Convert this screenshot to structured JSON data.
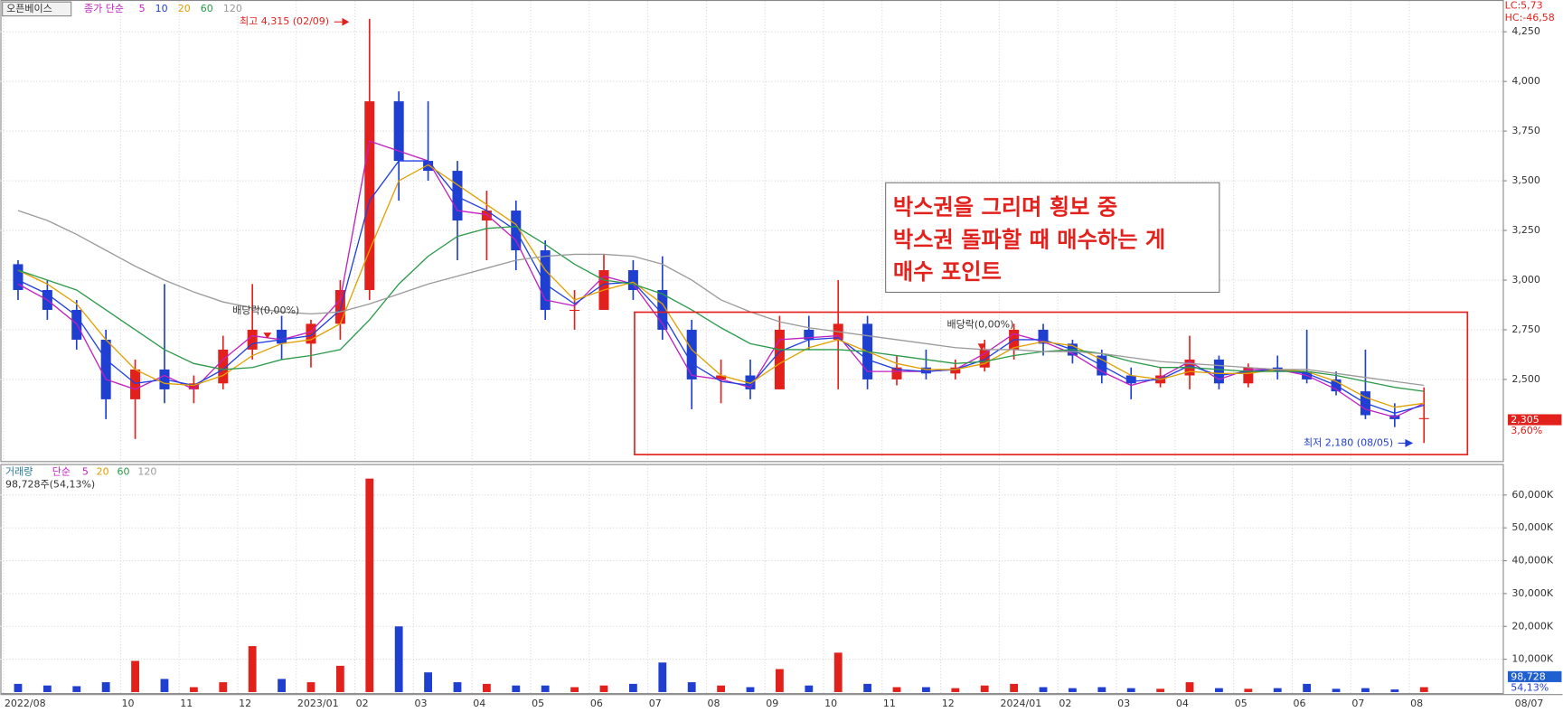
{
  "chart_data": {
    "type": "candlestick",
    "title": "오픈베이스",
    "ma_label": "종가 단순",
    "categories": [
      "2022/08",
      null,
      null,
      null,
      "10",
      null,
      "11",
      null,
      "12",
      null,
      "2023/01",
      null,
      "02",
      null,
      "03",
      null,
      "04",
      null,
      "05",
      null,
      "06",
      null,
      "07",
      null,
      "08",
      null,
      "09",
      null,
      "10",
      null,
      "11",
      null,
      "12",
      null,
      "2024/01",
      null,
      "02",
      null,
      "03",
      null,
      "04",
      null,
      "05",
      null,
      "06",
      null,
      "07",
      null,
      "08"
    ],
    "open": [
      3080,
      2950,
      2850,
      2700,
      2400,
      2550,
      2450,
      2480,
      2650,
      2750,
      2680,
      2780,
      2950,
      3900,
      3600,
      3550,
      3300,
      3350,
      3150,
      2850,
      2850,
      3050,
      2950,
      2750,
      2500,
      2520,
      2450,
      2750,
      2700,
      2780,
      2500,
      2560,
      2530,
      2560,
      2650,
      2750,
      2680,
      2620,
      2520,
      2480,
      2520,
      2600,
      2480,
      2560,
      2540,
      2500,
      2440,
      2320,
      2300
    ],
    "high": [
      3100,
      3000,
      2900,
      2750,
      2600,
      2980,
      2520,
      2720,
      2980,
      2820,
      2800,
      3000,
      4315,
      3950,
      3900,
      3600,
      3450,
      3400,
      3200,
      2950,
      3130,
      3100,
      3120,
      2800,
      2600,
      2600,
      2820,
      2820,
      3000,
      2820,
      2620,
      2650,
      2600,
      2700,
      2780,
      2780,
      2700,
      2650,
      2560,
      2560,
      2720,
      2620,
      2580,
      2620,
      2750,
      2540,
      2650,
      2380,
      2460
    ],
    "low": [
      2900,
      2800,
      2650,
      2300,
      2200,
      2380,
      2380,
      2450,
      2600,
      2600,
      2560,
      2700,
      2900,
      3400,
      3500,
      3100,
      3100,
      3050,
      2800,
      2750,
      2850,
      2900,
      2700,
      2350,
      2380,
      2400,
      2450,
      2650,
      2450,
      2450,
      2470,
      2500,
      2500,
      2540,
      2600,
      2620,
      2580,
      2480,
      2400,
      2460,
      2450,
      2450,
      2460,
      2500,
      2480,
      2420,
      2300,
      2260,
      2180
    ],
    "close": [
      2950,
      2850,
      2700,
      2400,
      2550,
      2450,
      2480,
      2650,
      2750,
      2680,
      2780,
      2950,
      3900,
      3600,
      3550,
      3300,
      3350,
      3150,
      2850,
      2850,
      3050,
      2950,
      2750,
      2500,
      2520,
      2450,
      2750,
      2700,
      2780,
      2500,
      2560,
      2530,
      2560,
      2650,
      2750,
      2680,
      2620,
      2520,
      2480,
      2520,
      2600,
      2480,
      2560,
      2540,
      2500,
      2440,
      2320,
      2300,
      2305
    ],
    "up_color": "#e3211c",
    "down_color": "#1f3fd0",
    "ma_series": [
      {
        "name": "5",
        "color": "#c020c0",
        "values": [
          2980,
          2900,
          2780,
          2500,
          2450,
          2520,
          2450,
          2600,
          2720,
          2700,
          2740,
          2900,
          3700,
          3650,
          3600,
          3350,
          3330,
          3200,
          2900,
          2870,
          3020,
          2980,
          2780,
          2520,
          2500,
          2460,
          2700,
          2710,
          2720,
          2540,
          2540,
          2540,
          2550,
          2630,
          2730,
          2690,
          2630,
          2540,
          2470,
          2510,
          2590,
          2500,
          2550,
          2550,
          2520,
          2450,
          2350,
          2310,
          2380
        ]
      },
      {
        "name": "10",
        "color": "#2040e0",
        "values": [
          3000,
          2930,
          2820,
          2600,
          2480,
          2500,
          2470,
          2550,
          2680,
          2700,
          2720,
          2850,
          3400,
          3600,
          3600,
          3420,
          3350,
          3250,
          2980,
          2880,
          2980,
          2990,
          2830,
          2580,
          2490,
          2470,
          2640,
          2700,
          2710,
          2600,
          2550,
          2540,
          2550,
          2600,
          2700,
          2700,
          2650,
          2570,
          2490,
          2500,
          2570,
          2520,
          2540,
          2550,
          2530,
          2470,
          2380,
          2330,
          2370
        ]
      },
      {
        "name": "20",
        "color": "#e0a000",
        "values": [
          3050,
          2980,
          2880,
          2700,
          2550,
          2480,
          2470,
          2520,
          2620,
          2680,
          2700,
          2780,
          3150,
          3500,
          3580,
          3480,
          3380,
          3280,
          3050,
          2900,
          2950,
          2990,
          2880,
          2650,
          2520,
          2480,
          2580,
          2660,
          2700,
          2640,
          2580,
          2550,
          2550,
          2580,
          2660,
          2690,
          2670,
          2600,
          2520,
          2500,
          2540,
          2530,
          2530,
          2550,
          2540,
          2490,
          2410,
          2360,
          2380
        ]
      },
      {
        "name": "60",
        "color": "#2a9a4a",
        "values": [
          3050,
          3000,
          2950,
          2850,
          2750,
          2650,
          2580,
          2550,
          2560,
          2600,
          2620,
          2650,
          2800,
          2980,
          3120,
          3220,
          3260,
          3270,
          3180,
          3080,
          3000,
          2980,
          2930,
          2850,
          2760,
          2680,
          2650,
          2650,
          2650,
          2640,
          2620,
          2600,
          2580,
          2590,
          2620,
          2640,
          2650,
          2630,
          2590,
          2560,
          2560,
          2550,
          2540,
          2540,
          2540,
          2520,
          2490,
          2460,
          2440
        ]
      },
      {
        "name": "120",
        "color": "#9a9a9a",
        "values": [
          3350,
          3300,
          3230,
          3150,
          3070,
          3000,
          2940,
          2890,
          2860,
          2840,
          2830,
          2840,
          2880,
          2930,
          2980,
          3020,
          3060,
          3100,
          3120,
          3130,
          3130,
          3120,
          3080,
          3000,
          2900,
          2840,
          2790,
          2760,
          2740,
          2720,
          2700,
          2680,
          2660,
          2650,
          2650,
          2640,
          2640,
          2630,
          2610,
          2590,
          2580,
          2570,
          2560,
          2550,
          2550,
          2530,
          2510,
          2490,
          2470
        ]
      }
    ],
    "ylim": [
      2089,
      4400
    ],
    "yticks": [
      {
        "value": 2500,
        "label": "2,500"
      },
      {
        "value": 2750,
        "label": "2,750"
      },
      {
        "value": 3000,
        "label": "3,000"
      },
      {
        "value": 3250,
        "label": "3,250"
      },
      {
        "value": 3500,
        "label": "3,500"
      },
      {
        "value": 3750,
        "label": "3,750"
      },
      {
        "value": 4000,
        "label": "4,000"
      },
      {
        "value": 4250,
        "label": "4,250"
      }
    ],
    "grid": true,
    "high_label": "최고 4,315 (02/09)",
    "low_label": "최저 2,180 (08/05)",
    "dividend_labels": [
      "배당락(0,00%)",
      "배당락(0,00%)"
    ],
    "note_lines": [
      "박스권을 그리며 횡보 중",
      "박스권 돌파할 때 매수하는 게",
      "매수 포인트"
    ],
    "last_price_label": "2,305",
    "change_label": "3,60%",
    "lc_label": "LC:5,73",
    "hc_label": "HC:-46,58",
    "last_date": "08/07",
    "volume": {
      "label": "거래량",
      "ma_label": "단순",
      "ma_periods": [
        5,
        20,
        60,
        120
      ],
      "info": "98,728주(54,13%)",
      "values": [
        2500,
        2000,
        1800,
        3000,
        9500,
        4000,
        1500,
        3000,
        14000,
        4000,
        3000,
        8000,
        65000,
        20000,
        6000,
        3000,
        2500,
        2000,
        2000,
        1500,
        2000,
        2500,
        9000,
        3000,
        2000,
        1500,
        7000,
        2000,
        12000,
        2500,
        1500,
        1500,
        1200,
        2000,
        2500,
        1500,
        1200,
        1500,
        1200,
        1000,
        3000,
        1200,
        1000,
        1200,
        2500,
        1000,
        1200,
        800,
        1500
      ],
      "ylim": [
        0,
        66700
      ],
      "yticks": [
        {
          "value": 10000,
          "label": "10,000K"
        },
        {
          "value": 20000,
          "label": "20,000K"
        },
        {
          "value": 30000,
          "label": "30,000K"
        },
        {
          "value": 40000,
          "label": "40,000K"
        },
        {
          "value": 50000,
          "label": "50,000K"
        },
        {
          "value": 60000,
          "label": "60,000K"
        }
      ],
      "last_label": "98,728",
      "ratio_label": "54,13%"
    }
  }
}
